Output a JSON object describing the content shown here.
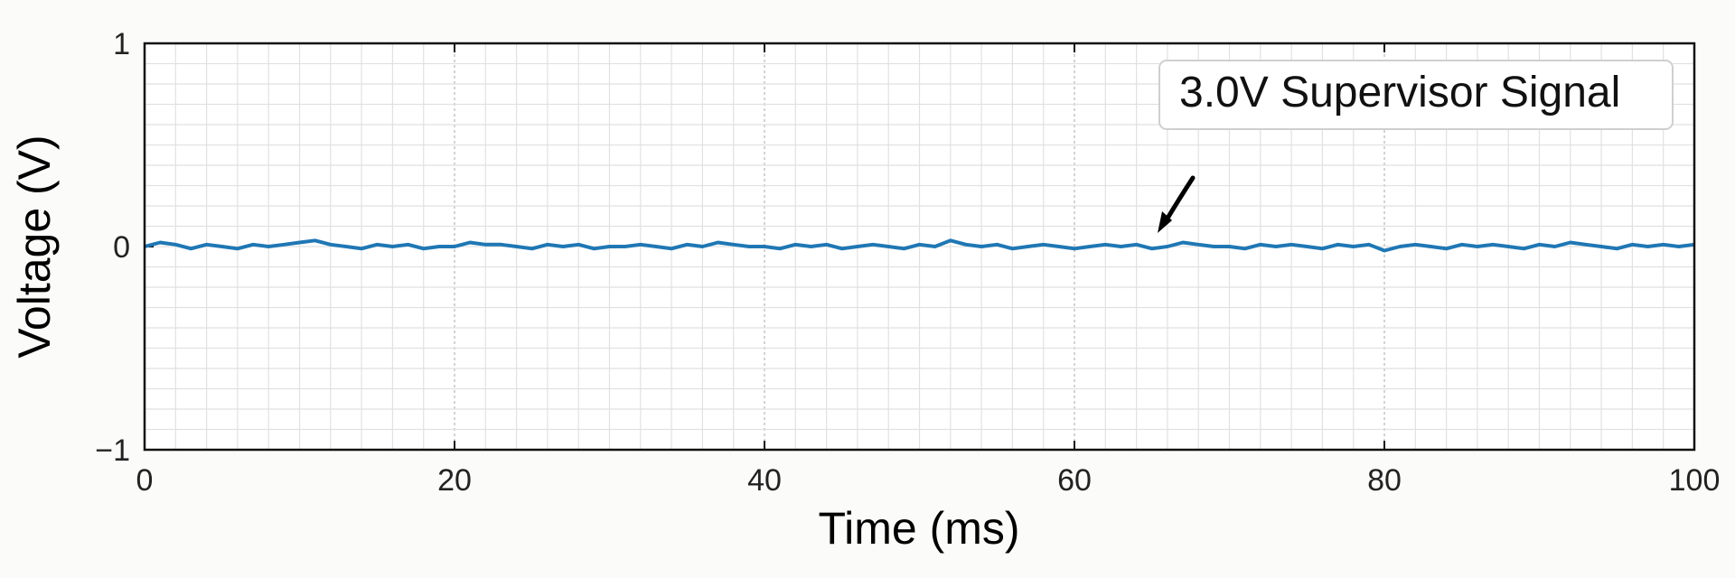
{
  "chart_data": {
    "type": "line",
    "title": "",
    "xlabel": "Time (ms)",
    "ylabel": "Voltage (V)",
    "xlim": [
      0,
      100
    ],
    "ylim": [
      -1,
      1
    ],
    "xticks": [
      0,
      20,
      40,
      60,
      80,
      100
    ],
    "xtick_labels": [
      "0",
      "20",
      "40",
      "60",
      "80",
      "100"
    ],
    "yticks": [
      -1,
      0,
      1
    ],
    "ytick_labels": [
      "−1",
      "0",
      "1"
    ],
    "grid": true,
    "legend_position": "top-right",
    "colors": {
      "series": "#1f77b4",
      "frame": "#111111",
      "grid": "#dedede"
    },
    "series": [
      {
        "name": "3.0V Supervisor Signal",
        "x": [
          0,
          1,
          2,
          3,
          4,
          5,
          6,
          7,
          8,
          9,
          10,
          11,
          12,
          13,
          14,
          15,
          16,
          17,
          18,
          19,
          20,
          21,
          22,
          23,
          24,
          25,
          26,
          27,
          28,
          29,
          30,
          31,
          32,
          33,
          34,
          35,
          36,
          37,
          38,
          39,
          40,
          41,
          42,
          43,
          44,
          45,
          46,
          47,
          48,
          49,
          50,
          51,
          52,
          53,
          54,
          55,
          56,
          57,
          58,
          59,
          60,
          61,
          62,
          63,
          64,
          65,
          66,
          67,
          68,
          69,
          70,
          71,
          72,
          73,
          74,
          75,
          76,
          77,
          78,
          79,
          80,
          81,
          82,
          83,
          84,
          85,
          86,
          87,
          88,
          89,
          90,
          91,
          92,
          93,
          94,
          95,
          96,
          97,
          98,
          99,
          100
        ],
        "y": [
          0.0,
          0.02,
          0.01,
          -0.01,
          0.01,
          0.0,
          -0.01,
          0.01,
          0.0,
          0.01,
          0.02,
          0.03,
          0.01,
          0.0,
          -0.01,
          0.01,
          0.0,
          0.01,
          -0.01,
          0.0,
          0.0,
          0.02,
          0.01,
          0.01,
          0.0,
          -0.01,
          0.01,
          0.0,
          0.01,
          -0.01,
          0.0,
          0.0,
          0.01,
          0.0,
          -0.01,
          0.01,
          0.0,
          0.02,
          0.01,
          0.0,
          0.0,
          -0.01,
          0.01,
          0.0,
          0.01,
          -0.01,
          0.0,
          0.01,
          0.0,
          -0.01,
          0.01,
          0.0,
          0.03,
          0.01,
          0.0,
          0.01,
          -0.01,
          0.0,
          0.01,
          0.0,
          -0.01,
          0.0,
          0.01,
          0.0,
          0.01,
          -0.01,
          0.0,
          0.02,
          0.01,
          0.0,
          0.0,
          -0.01,
          0.01,
          0.0,
          0.01,
          0.0,
          -0.01,
          0.01,
          0.0,
          0.01,
          -0.02,
          0.0,
          0.01,
          0.0,
          -0.01,
          0.01,
          0.0,
          0.01,
          0.0,
          -0.01,
          0.01,
          0.0,
          0.02,
          0.01,
          0.0,
          -0.01,
          0.01,
          0.0,
          0.01,
          0.0,
          0.01
        ]
      }
    ],
    "legend": {
      "label": "3.0V Supervisor Signal"
    },
    "annotations": [
      {
        "type": "arrow",
        "x": 65.7,
        "y": 0.11
      }
    ]
  }
}
